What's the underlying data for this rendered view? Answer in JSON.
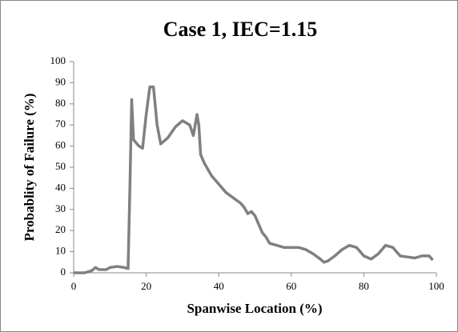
{
  "chart_data": {
    "type": "line",
    "title": "Case 1, IEC=1.15",
    "x_label": "Spanwise Location (%)",
    "y_label": "Probablity of Failure (%)",
    "xlim": [
      0,
      100
    ],
    "xticks": [
      0,
      20,
      40,
      60,
      80,
      100
    ],
    "ylim": [
      0,
      100
    ],
    "yticks": [
      0,
      10,
      20,
      30,
      40,
      50,
      60,
      70,
      80,
      90,
      100
    ],
    "series": [
      {
        "name": "Case 1",
        "color": "#808080",
        "x": [
          0,
          3,
          5,
          6,
          7,
          9,
          10,
          12,
          14,
          15,
          15.5,
          16,
          16.5,
          18,
          19,
          20,
          21,
          22,
          23,
          24,
          26,
          28,
          30,
          32,
          33,
          34,
          34.5,
          35,
          36,
          38,
          40,
          42,
          44,
          46,
          47,
          48,
          49,
          50,
          51,
          52,
          53,
          54,
          56,
          58,
          62,
          64,
          66,
          68,
          69,
          70,
          72,
          74,
          76,
          78,
          80,
          82,
          84,
          86,
          88,
          90,
          92,
          94,
          96,
          98,
          99
        ],
        "values": [
          0,
          0,
          1,
          2.5,
          1.5,
          1.5,
          2.5,
          3,
          2.5,
          2,
          40,
          82,
          63,
          60,
          59,
          75,
          88,
          88,
          70,
          61,
          64,
          69,
          72,
          70,
          65,
          75,
          70,
          56,
          52,
          46,
          42,
          38,
          35.5,
          33,
          31,
          28,
          29,
          27,
          23,
          19,
          17,
          14,
          13,
          12,
          12,
          11,
          9,
          6.5,
          5,
          5.5,
          8,
          11,
          13,
          12,
          8,
          6.5,
          9,
          13,
          12,
          8,
          7.5,
          7,
          8,
          8,
          6
        ]
      }
    ]
  }
}
